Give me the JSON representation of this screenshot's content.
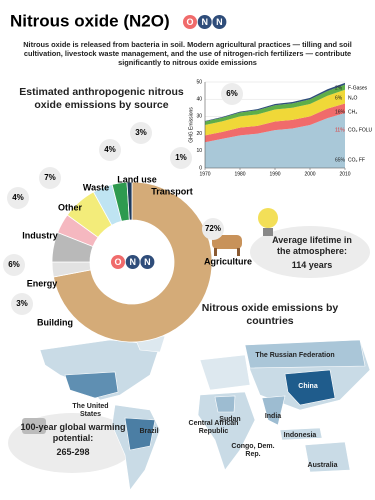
{
  "header": {
    "title": "Nitrous oxide (N2O)",
    "molecule": [
      "O",
      "N",
      "N"
    ],
    "description": "Nitrous oxide is released from bacteria in soil. Modern agricultural practices — tilling and soil cultivation, livestock waste management, and the use of nitrogen-rich fertilizers — contribute significantly to nitrous oxide emissions"
  },
  "chart_data": [
    {
      "type": "pie",
      "title": "Estimated anthropogenic nitrous oxide emissions by source",
      "categories": [
        "Agriculture",
        "Building",
        "Energy",
        "Industry",
        "Other",
        "Waste",
        "Land use",
        "Transport"
      ],
      "values": [
        72,
        3,
        6,
        4,
        7,
        4,
        3,
        1
      ],
      "value_labels": [
        "72%",
        "3%",
        "6%",
        "4%",
        "7%",
        "4%",
        "3%",
        "1%"
      ],
      "colors": [
        "#d4ab78",
        "#e2e2e2",
        "#b9b9b9",
        "#f5b8c0",
        "#f3ec7a",
        "#bfe4f2",
        "#2e9a4f",
        "#1f3a5c"
      ]
    },
    {
      "type": "area",
      "stacked": true,
      "ylabel": "GHG Emissions",
      "x": [
        1970,
        1975,
        1980,
        1985,
        1990,
        1995,
        2000,
        2005,
        2010
      ],
      "xlim": [
        1970,
        2010
      ],
      "xticks": [
        1970,
        1980,
        1990,
        2000,
        2010
      ],
      "ylim": [
        0,
        50
      ],
      "yticks": [
        0,
        10,
        20,
        30,
        40,
        50
      ],
      "callout": {
        "value": 6,
        "label": "6%"
      },
      "series": [
        {
          "name": "CO₂ FF",
          "color": "#a9c8d8",
          "share": 65,
          "share_label": "65%",
          "values": [
            15,
            17,
            19,
            20,
            22,
            23,
            25,
            29,
            32
          ]
        },
        {
          "name": "CO₂ FOLU",
          "color": "#f06b6b",
          "share": 11,
          "share_label": "11%",
          "values": [
            4,
            4,
            4.5,
            4.5,
            5,
            5,
            5,
            5.5,
            5.5
          ]
        },
        {
          "name": "CH₄",
          "color": "#f0d838",
          "share": 16,
          "share_label": "16%",
          "values": [
            6,
            6.2,
            6.5,
            6.7,
            7,
            7,
            7.2,
            7.5,
            8
          ]
        },
        {
          "name": "N₂O",
          "color": "#5fae48",
          "share": 6,
          "share_label": "6%",
          "values": [
            2,
            2.1,
            2.3,
            2.4,
            2.5,
            2.6,
            2.7,
            2.8,
            3
          ]
        },
        {
          "name": "F-Gases",
          "color": "#2f4d7a",
          "share": 2,
          "share_label": "2%",
          "values": [
            0.3,
            0.4,
            0.5,
            0.6,
            0.7,
            0.8,
            0.9,
            1,
            1
          ]
        }
      ]
    }
  ],
  "lifetime": {
    "label": "Average lifetime in the atmosphere:",
    "value": "114 years"
  },
  "gwp": {
    "label": "100-year global warming potential:",
    "value": "265-298"
  },
  "map": {
    "title": "Nitrous oxide emissions by countries",
    "countries": [
      "The Russian Federation",
      "China",
      "The United States",
      "Brazil",
      "Sudan",
      "India",
      "Central African Republic",
      "Indonesia",
      "Congo, Dem. Rep.",
      "Australia"
    ]
  }
}
